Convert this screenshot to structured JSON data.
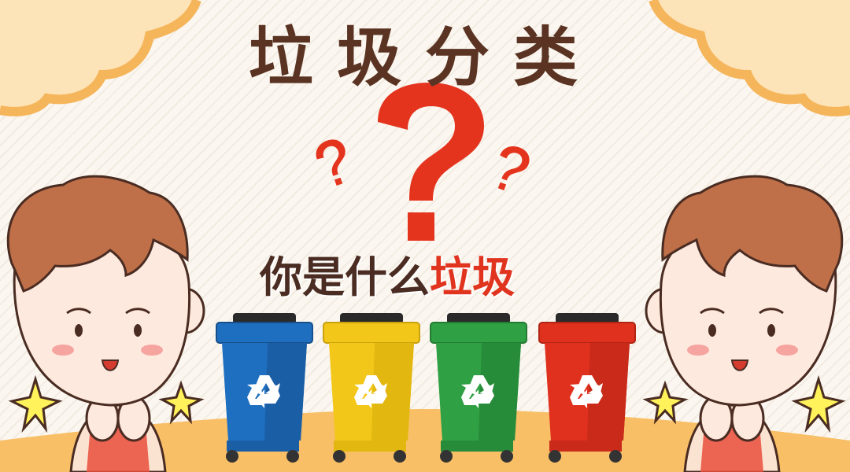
{
  "title": "垃圾分类",
  "subtitle_prefix": "你是什么",
  "subtitle_highlight": "垃圾",
  "colors": {
    "title": "#5a3322",
    "highlight": "#e0341f",
    "bin_blue": "#1f6fc0",
    "bin_yellow": "#f3c719",
    "bin_green": "#2fa043",
    "bin_red": "#e0301e"
  },
  "bins": [
    {
      "color_name": "blue",
      "icon": "recycle-icon"
    },
    {
      "color_name": "yellow",
      "icon": "recycle-icon"
    },
    {
      "color_name": "green",
      "icon": "recycle-icon"
    },
    {
      "color_name": "red",
      "icon": "recycle-icon"
    }
  ]
}
